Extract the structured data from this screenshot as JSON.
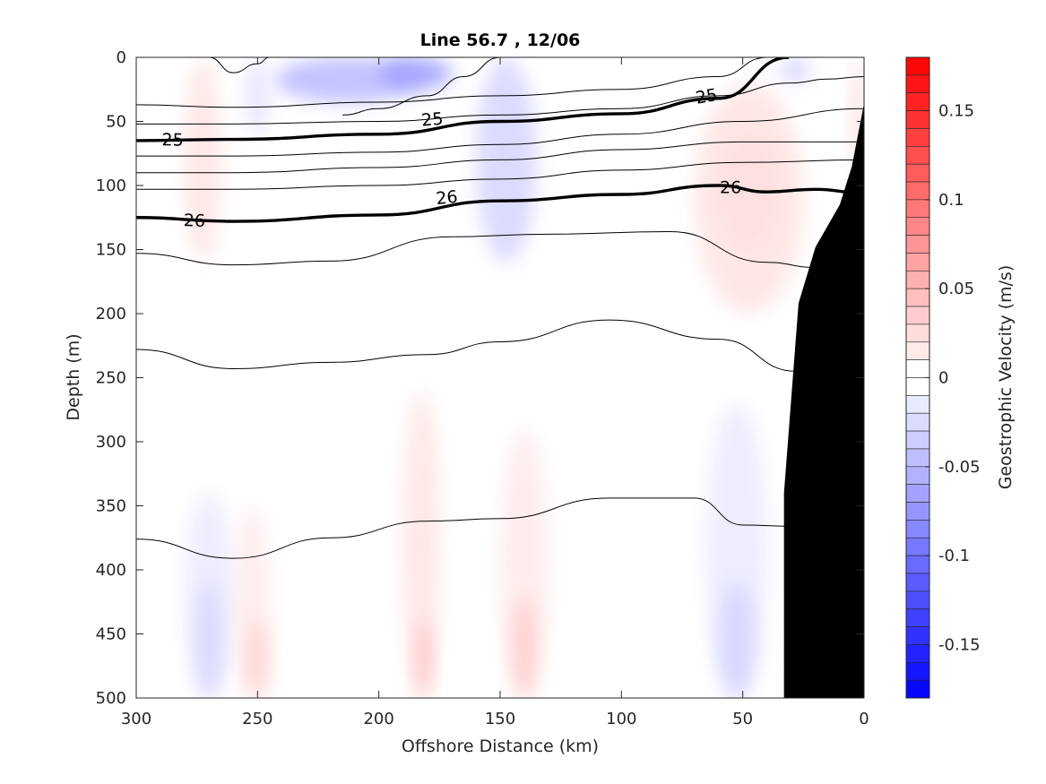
{
  "chart_data": {
    "type": "heatmap",
    "title": "Line 56.7 , 12/06",
    "xlabel": "Offshore Distance (km)",
    "ylabel": "Depth (m)",
    "xlim": [
      300,
      0
    ],
    "ylim": [
      0,
      500
    ],
    "x_reversed": true,
    "y_reversed": true,
    "x_ticks": [
      300,
      250,
      200,
      150,
      100,
      50,
      0
    ],
    "y_ticks": [
      0,
      50,
      100,
      150,
      200,
      250,
      300,
      350,
      400,
      450,
      500
    ],
    "colorbar": {
      "label": "Geostrophic Velocity (m/s)",
      "range": [
        -0.18,
        0.18
      ],
      "step": 0.01,
      "ticks": [
        0.15,
        0.1,
        0.05,
        0,
        -0.05,
        -0.1,
        -0.15
      ],
      "tick_labels": [
        "0.15",
        "0.1",
        "0.05",
        "0",
        "-0.05",
        "-0.1",
        "-0.15"
      ],
      "colormap": "blue-white-red",
      "neg_color": "#0000ff",
      "zero_color": "#ffffff",
      "pos_color": "#ff0000"
    },
    "velocity_features": [
      {
        "x": [
          243,
          183
        ],
        "y": [
          0,
          35
        ],
        "value": -0.05
      },
      {
        "x": [
          200,
          170
        ],
        "y": [
          0,
          25
        ],
        "value": -0.07
      },
      {
        "x": [
          160,
          135
        ],
        "y": [
          0,
          160
        ],
        "value": -0.03
      },
      {
        "x": [
          255,
          245
        ],
        "y": [
          0,
          60
        ],
        "value": -0.02
      },
      {
        "x": [
          35,
          22
        ],
        "y": [
          0,
          20
        ],
        "value": -0.03
      },
      {
        "x": [
          60,
          35
        ],
        "y": [
          60,
          150
        ],
        "value": 0.04
      },
      {
        "x": [
          70,
          25
        ],
        "y": [
          20,
          200
        ],
        "value": 0.02
      },
      {
        "x": [
          5,
          0
        ],
        "y": [
          0,
          90
        ],
        "value": 0.03
      },
      {
        "x": [
          280,
          265
        ],
        "y": [
          0,
          160
        ],
        "value": 0.02
      },
      {
        "x": [
          190,
          175
        ],
        "y": [
          260,
          500
        ],
        "value": 0.02
      },
      {
        "x": [
          185,
          178
        ],
        "y": [
          440,
          500
        ],
        "value": 0.04
      },
      {
        "x": [
          150,
          130
        ],
        "y": [
          290,
          500
        ],
        "value": 0.015
      },
      {
        "x": [
          145,
          135
        ],
        "y": [
          420,
          500
        ],
        "value": 0.035
      },
      {
        "x": [
          260,
          245
        ],
        "y": [
          350,
          500
        ],
        "value": 0.015
      },
      {
        "x": [
          255,
          245
        ],
        "y": [
          440,
          500
        ],
        "value": 0.03
      },
      {
        "x": [
          280,
          260
        ],
        "y": [
          340,
          500
        ],
        "value": -0.015
      },
      {
        "x": [
          275,
          265
        ],
        "y": [
          410,
          500
        ],
        "value": -0.03
      },
      {
        "x": [
          65,
          40
        ],
        "y": [
          270,
          500
        ],
        "value": -0.015
      },
      {
        "x": [
          60,
          45
        ],
        "y": [
          410,
          500
        ],
        "value": -0.03
      }
    ],
    "density_contours": [
      {
        "x": [
          270,
          260,
          250,
          245
        ],
        "y": [
          0,
          12,
          5,
          0
        ],
        "label": ""
      },
      {
        "x": [
          215,
          200,
          180,
          165,
          150
        ],
        "y": [
          45,
          40,
          30,
          15,
          0
        ],
        "label": ""
      },
      {
        "x": [
          300,
          260,
          200,
          150,
          100,
          60,
          40,
          20,
          0
        ],
        "y": [
          37,
          39,
          35,
          30,
          25,
          15,
          0,
          0,
          0
        ],
        "label": ""
      },
      {
        "x": [
          300,
          260,
          200,
          150,
          100,
          60,
          30,
          15,
          0
        ],
        "y": [
          52,
          52,
          50,
          45,
          40,
          30,
          20,
          17,
          15
        ],
        "label": ""
      },
      {
        "x": [
          300,
          260,
          200,
          150,
          100,
          60,
          31
        ],
        "y": [
          65,
          64,
          60,
          50,
          44,
          32,
          0
        ],
        "label": "25"
      },
      {
        "x": [
          300,
          260,
          200,
          150,
          100,
          50,
          0
        ],
        "y": [
          77,
          77,
          74,
          68,
          60,
          50,
          40
        ],
        "label": ""
      },
      {
        "x": [
          300,
          260,
          200,
          150,
          100,
          50,
          0
        ],
        "y": [
          90,
          90,
          86,
          80,
          72,
          66,
          66
        ],
        "label": ""
      },
      {
        "x": [
          300,
          260,
          200,
          150,
          100,
          50,
          0
        ],
        "y": [
          103,
          103,
          100,
          95,
          88,
          82,
          80
        ],
        "label": ""
      },
      {
        "x": [
          300,
          260,
          200,
          150,
          100,
          60,
          40,
          20,
          0
        ],
        "y": [
          125,
          128,
          123,
          112,
          107,
          100,
          105,
          103,
          106
        ],
        "label": "26"
      },
      {
        "x": [
          300,
          260,
          220,
          170,
          130,
          80,
          40,
          20
        ],
        "y": [
          153,
          162,
          159,
          140,
          138,
          136,
          160,
          164
        ],
        "label": ""
      },
      {
        "x": [
          300,
          260,
          220,
          180,
          150,
          105,
          60,
          28
        ],
        "y": [
          228,
          243,
          238,
          232,
          222,
          205,
          220,
          245
        ],
        "label": ""
      },
      {
        "x": [
          300,
          260,
          220,
          180,
          150,
          105,
          70,
          50,
          30
        ],
        "y": [
          376,
          391,
          375,
          362,
          360,
          344,
          344,
          365,
          366
        ],
        "label": ""
      }
    ],
    "density_labels": [
      "25",
      "25",
      "26",
      "26"
    ],
    "bathymetry": {
      "x": [
        0,
        5,
        10,
        20,
        27,
        33,
        33,
        0
      ],
      "y": [
        36,
        85,
        115,
        148,
        192,
        340,
        500,
        500
      ],
      "color": "#000000"
    }
  }
}
